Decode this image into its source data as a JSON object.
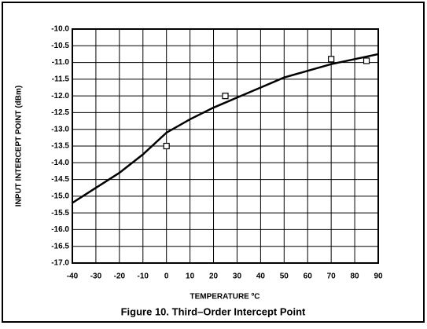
{
  "chart_data": {
    "type": "line",
    "xlabel": "TEMPERATURE ºC",
    "ylabel": "INPUT INTERCEPT POINT (dBm)",
    "caption": "Figure 10.  Third–Order Intercept Point",
    "series": [
      {
        "color": "#000000",
        "x": [
          -40,
          -30,
          -20,
          -10,
          0,
          10,
          20,
          30,
          40,
          50,
          60,
          70,
          80,
          90
        ],
        "values": [
          -15.2,
          -14.75,
          -14.3,
          -13.75,
          -13.1,
          -12.7,
          -12.35,
          -12.05,
          -11.75,
          -11.45,
          -11.25,
          -11.05,
          -10.9,
          -10.75
        ]
      },
      {
        "color": "#000000",
        "marker": "square",
        "x": [
          0,
          25,
          70,
          85
        ],
        "values": [
          -13.5,
          -12.0,
          -10.9,
          -10.95
        ]
      }
    ],
    "xlim": [
      -40,
      90
    ],
    "xticks": [
      -40,
      -30,
      -20,
      -10,
      0,
      10,
      20,
      30,
      40,
      50,
      60,
      70,
      80,
      90
    ],
    "ylim": [
      -17.0,
      -10.0
    ],
    "yticks": [
      {
        "value": -10,
        "label": "-10.0"
      },
      -10.5,
      {
        "value": -11,
        "label": "-11.0"
      },
      -11.5,
      {
        "value": -12,
        "label": "-12.0"
      },
      -12.5,
      {
        "value": -13,
        "label": "-13.0"
      },
      -13.5,
      {
        "value": -14,
        "label": "-14.0"
      },
      -14.5,
      {
        "value": -15,
        "label": "-15.0"
      },
      -15.5,
      {
        "value": -16,
        "label": "-16.0"
      },
      -16.5,
      {
        "value": -17,
        "label": "-17.0"
      }
    ],
    "grid": true
  }
}
